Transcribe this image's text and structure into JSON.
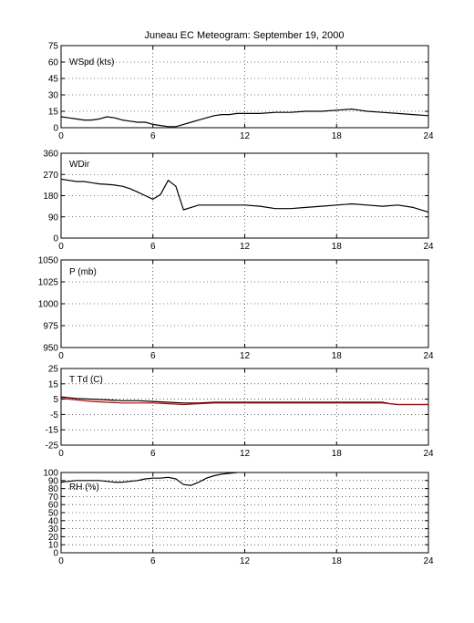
{
  "chart_data": {
    "title": "Juneau EC Meteogram: September 19, 2000",
    "panels": [
      {
        "id": "wspd",
        "type": "line",
        "label": "WSpd (kts)",
        "xlim": [
          0,
          24
        ],
        "xticks": [
          0,
          6,
          12,
          18,
          24
        ],
        "ylim": [
          0,
          75
        ],
        "yticks": [
          0,
          15,
          30,
          45,
          60,
          75
        ],
        "grid": true,
        "series": [
          {
            "color": "#000000",
            "x": [
              0,
              0.5,
              1,
              1.5,
              2,
              2.5,
              3,
              3.5,
              4,
              4.5,
              5,
              5.5,
              6,
              6.5,
              7,
              7.5,
              8,
              8.5,
              9,
              9.5,
              10,
              10.5,
              11,
              11.5,
              12,
              13,
              14,
              15,
              16,
              17,
              18,
              19,
              19.5,
              20,
              21,
              22,
              23,
              24
            ],
            "y": [
              10,
              9,
              8,
              7,
              7,
              8,
              10,
              9,
              7,
              6,
              5,
              5,
              3,
              2,
              1,
              1,
              3,
              5,
              7,
              9,
              11,
              12,
              12,
              13,
              13,
              13,
              14,
              14,
              15,
              15,
              16,
              17,
              16,
              15,
              14,
              13,
              12,
              11
            ]
          }
        ]
      },
      {
        "id": "wdir",
        "type": "line",
        "label": "WDir",
        "xlim": [
          0,
          24
        ],
        "xticks": [
          0,
          6,
          12,
          18,
          24
        ],
        "ylim": [
          0,
          360
        ],
        "yticks": [
          0,
          90,
          180,
          270,
          360
        ],
        "grid": true,
        "series": [
          {
            "color": "#000000",
            "x": [
              0,
              0.5,
              1,
              1.5,
              2,
              2.5,
              3,
              3.5,
              4,
              4.5,
              5,
              5.5,
              6,
              6.5,
              7,
              7.5,
              8,
              8.5,
              9,
              10,
              11,
              12,
              13,
              14,
              15,
              16,
              17,
              18,
              19,
              20,
              21,
              22,
              23,
              24
            ],
            "y": [
              250,
              245,
              240,
              240,
              235,
              230,
              228,
              225,
              220,
              210,
              195,
              180,
              165,
              185,
              245,
              220,
              120,
              130,
              140,
              140,
              140,
              140,
              135,
              125,
              125,
              130,
              135,
              140,
              145,
              140,
              135,
              140,
              130,
              110
            ]
          }
        ]
      },
      {
        "id": "pres",
        "type": "line",
        "label": "P (mb)",
        "xlim": [
          0,
          24
        ],
        "xticks": [
          0,
          6,
          12,
          18,
          24
        ],
        "ylim": [
          950,
          1050
        ],
        "yticks": [
          950,
          975,
          1000,
          1025,
          1050
        ],
        "grid": true,
        "series": []
      },
      {
        "id": "ttd",
        "type": "line",
        "label": "T Td (C)",
        "xlim": [
          0,
          24
        ],
        "xticks": [
          0,
          6,
          12,
          18,
          24
        ],
        "ylim": [
          -25,
          25
        ],
        "yticks": [
          -25,
          -15,
          -5,
          5,
          15,
          25
        ],
        "grid": true,
        "series": [
          {
            "color": "#000000",
            "x": [
              0,
              1,
              2,
              3,
              4,
              5,
              6,
              7,
              8,
              9,
              10,
              11,
              12,
              14,
              16,
              18,
              20,
              21,
              21.5,
              22,
              24
            ],
            "y": [
              6.5,
              5.5,
              5,
              4.5,
              4,
              4,
              3.5,
              3,
              2.5,
              2.5,
              3,
              3,
              3,
              3,
              3,
              3,
              3,
              3,
              2,
              1.5,
              1.5
            ]
          },
          {
            "color": "#cc0000",
            "x": [
              0,
              1,
              2,
              3,
              4,
              5,
              6,
              7,
              8,
              9,
              10,
              11,
              12,
              14,
              16,
              18,
              20,
              21,
              22,
              24
            ],
            "y": [
              5.5,
              4.5,
              3.5,
              3,
              2.5,
              2.5,
              2.5,
              2,
              1.5,
              2,
              2.5,
              2.5,
              2.5,
              2.5,
              2.5,
              2.5,
              2.5,
              2.5,
              1.5,
              1.5
            ]
          }
        ]
      },
      {
        "id": "rh",
        "type": "line",
        "label": "RH (%)",
        "xlim": [
          0,
          24
        ],
        "xticks": [
          0,
          6,
          12,
          18,
          24
        ],
        "ylim": [
          0,
          100
        ],
        "yticks": [
          0,
          10,
          20,
          30,
          40,
          50,
          60,
          70,
          80,
          90,
          100
        ],
        "grid": true,
        "series": [
          {
            "color": "#000000",
            "x": [
              0,
              0.5,
              1,
              1.5,
              2,
              2.5,
              3,
              3.5,
              4,
              4.5,
              5,
              5.5,
              6,
              6.5,
              7,
              7.5,
              8,
              8.5,
              9,
              9.5,
              10,
              10.5,
              11,
              11.5
            ],
            "y": [
              88,
              89,
              90,
              90,
              90,
              90,
              89,
              88,
              88,
              89,
              90,
              92,
              93,
              93,
              94,
              92,
              85,
              84,
              88,
              93,
              96,
              98,
              99,
              100
            ]
          }
        ]
      }
    ]
  }
}
